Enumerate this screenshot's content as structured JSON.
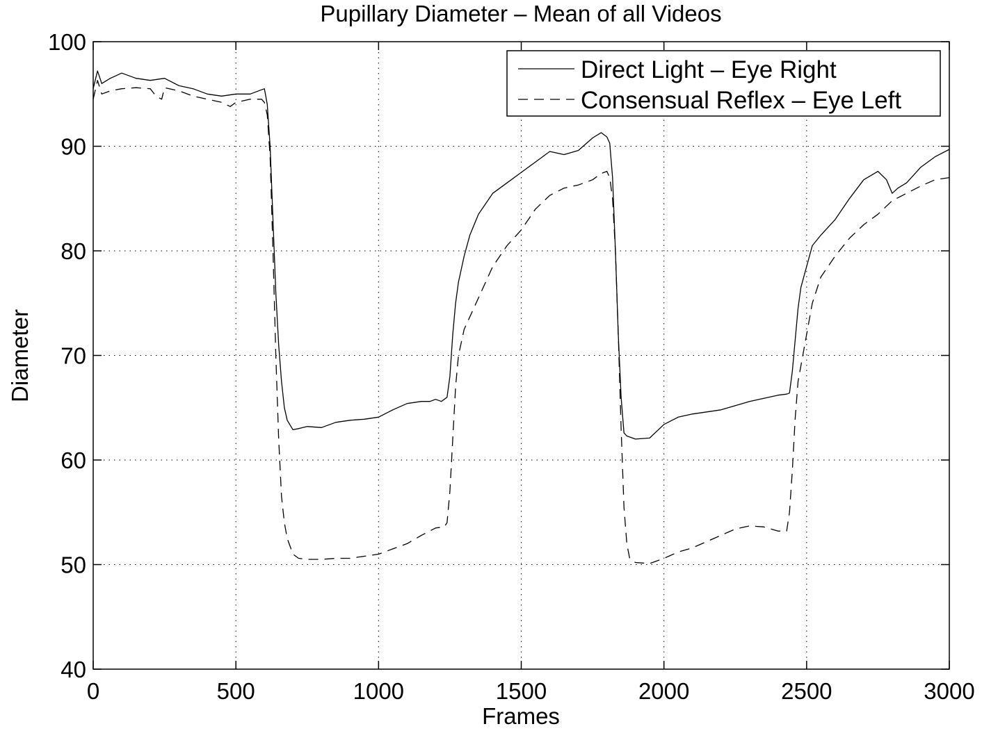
{
  "chart_data": {
    "type": "line",
    "title": "Pupillary Diameter – Mean of all Videos",
    "xlabel": "Frames",
    "ylabel": "Diameter",
    "xlim": [
      0,
      3000
    ],
    "ylim": [
      40,
      100
    ],
    "x_ticks": [
      0,
      500,
      1000,
      1500,
      2000,
      2500,
      3000
    ],
    "y_ticks": [
      40,
      50,
      60,
      70,
      80,
      90,
      100
    ],
    "grid": true,
    "legend_position": "top-right",
    "series": [
      {
        "name": "Direct Light – Eye Right",
        "line_style": "solid",
        "color": "#000000",
        "x": [
          0,
          15,
          30,
          60,
          100,
          150,
          200,
          250,
          300,
          350,
          400,
          450,
          500,
          550,
          590,
          600,
          610,
          620,
          630,
          640,
          650,
          660,
          670,
          680,
          700,
          720,
          750,
          800,
          850,
          900,
          950,
          1000,
          1050,
          1100,
          1150,
          1180,
          1200,
          1220,
          1240,
          1250,
          1260,
          1270,
          1280,
          1300,
          1320,
          1350,
          1400,
          1450,
          1500,
          1550,
          1600,
          1650,
          1700,
          1750,
          1780,
          1800,
          1810,
          1820,
          1830,
          1840,
          1850,
          1860,
          1870,
          1900,
          1950,
          2000,
          2050,
          2100,
          2150,
          2200,
          2250,
          2300,
          2350,
          2400,
          2430,
          2440,
          2450,
          2460,
          2470,
          2480,
          2500,
          2520,
          2550,
          2600,
          2650,
          2700,
          2750,
          2780,
          2800,
          2820,
          2850,
          2900,
          2950,
          3000
        ],
        "y": [
          95.5,
          97.2,
          96,
          96.5,
          97,
          96.5,
          96.3,
          96.5,
          95.8,
          95.5,
          95,
          94.8,
          95,
          95,
          95.4,
          95.5,
          94,
          90,
          83,
          76,
          71,
          67.5,
          65,
          63.8,
          62.9,
          63,
          63.2,
          63.1,
          63.6,
          63.8,
          63.9,
          64.1,
          64.8,
          65.4,
          65.6,
          65.6,
          65.8,
          65.6,
          66,
          68,
          72,
          75,
          77,
          79.5,
          81.5,
          83.5,
          85.5,
          86.5,
          87.5,
          88.5,
          89.5,
          89.2,
          89.6,
          90.8,
          91.3,
          90.9,
          90.3,
          87,
          80,
          72,
          66,
          62.6,
          62.3,
          62,
          62.1,
          63.4,
          64.1,
          64.4,
          64.6,
          64.8,
          65.2,
          65.6,
          65.9,
          66.2,
          66.3,
          66.4,
          68.5,
          71.5,
          74.5,
          76.5,
          78.5,
          80.5,
          81.5,
          83,
          85,
          86.8,
          87.6,
          86.8,
          85.5,
          86,
          86.5,
          88,
          89,
          89.7
        ]
      },
      {
        "name": "Consensual Reflex – Eye Left",
        "line_style": "dashed",
        "color": "#000000",
        "x": [
          0,
          15,
          30,
          60,
          100,
          150,
          200,
          220,
          240,
          250,
          300,
          350,
          400,
          450,
          480,
          500,
          550,
          590,
          600,
          610,
          620,
          630,
          640,
          650,
          660,
          670,
          680,
          700,
          720,
          750,
          800,
          850,
          900,
          950,
          1000,
          1050,
          1100,
          1150,
          1200,
          1230,
          1240,
          1250,
          1260,
          1270,
          1280,
          1300,
          1350,
          1400,
          1450,
          1500,
          1550,
          1600,
          1650,
          1700,
          1750,
          1780,
          1800,
          1810,
          1820,
          1830,
          1840,
          1850,
          1860,
          1870,
          1880,
          1900,
          1950,
          2000,
          2050,
          2100,
          2150,
          2200,
          2250,
          2300,
          2350,
          2400,
          2430,
          2440,
          2450,
          2460,
          2470,
          2480,
          2500,
          2520,
          2550,
          2600,
          2650,
          2700,
          2750,
          2800,
          2850,
          2900,
          2950,
          3000
        ],
        "y": [
          94.5,
          96.3,
          95,
          95.3,
          95.5,
          95.6,
          95.5,
          94.8,
          94.5,
          95.6,
          95.3,
          94.8,
          94.5,
          94.2,
          93.8,
          94.2,
          94.5,
          94.5,
          94.2,
          93,
          89,
          80,
          70,
          62,
          56.5,
          54,
          52.5,
          51,
          50.6,
          50.5,
          50.5,
          50.6,
          50.6,
          50.8,
          51,
          51.5,
          52,
          52.8,
          53.5,
          53.6,
          54,
          57,
          62,
          67,
          70,
          72.5,
          75.5,
          78.5,
          80.5,
          82,
          84,
          85.3,
          86,
          86.3,
          86.8,
          87.4,
          87.6,
          87,
          85,
          80,
          72,
          63,
          55.5,
          52,
          50.6,
          50.2,
          50.1,
          50.6,
          51.2,
          51.6,
          52.2,
          52.8,
          53.4,
          53.7,
          53.6,
          53.2,
          53.2,
          55,
          59,
          64,
          67.5,
          69,
          72,
          75,
          77.5,
          79.5,
          81.2,
          82.5,
          83.5,
          84.8,
          85.5,
          86.2,
          86.8,
          87
        ]
      }
    ]
  }
}
